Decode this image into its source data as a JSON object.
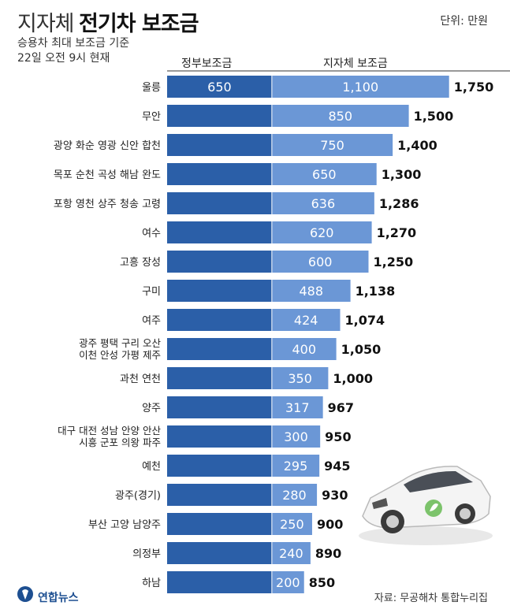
{
  "header": {
    "title_light": "지자체",
    "title_bold": "전기차 보조금",
    "unit": "단위: 만원",
    "subtitle_line1": "승용차 최대 보조금 기준",
    "subtitle_line2": "22일 오전 9시 현재"
  },
  "legend": {
    "government": "정부보조금",
    "local": "지자체 보조금"
  },
  "colors": {
    "government": "#2b5fa8",
    "local": "#6b97d6",
    "bar_text": "#ffffff",
    "total_text": "#111111"
  },
  "chart_data": {
    "type": "bar",
    "orientation": "horizontal",
    "stacked": true,
    "categories": [
      "울릉",
      "무안",
      "광양 화순 영광 신안 합천",
      "목포 순천 곡성 해남 완도",
      "포항 영천 상주 청송 고령",
      "여수",
      "고흥 장성",
      "구미",
      "여주",
      "광주 평택 구리 오산\n이천 안성 가평 제주",
      "과천 연천",
      "양주",
      "대구 대전 성남 안양 안산\n시흥 군포 의왕 파주",
      "예천",
      "광주(경기)",
      "부산 고양 남양주",
      "의정부",
      "하남"
    ],
    "series": [
      {
        "name": "정부보조금",
        "values": [
          650,
          650,
          650,
          650,
          650,
          650,
          650,
          650,
          650,
          650,
          650,
          650,
          650,
          650,
          650,
          650,
          650,
          650
        ]
      },
      {
        "name": "지자체 보조금",
        "values": [
          1100,
          850,
          750,
          650,
          636,
          620,
          600,
          488,
          424,
          400,
          350,
          317,
          300,
          295,
          280,
          250,
          240,
          200
        ]
      }
    ],
    "government_label": "650",
    "local_labels": [
      "1,100",
      "850",
      "750",
      "650",
      "636",
      "620",
      "600",
      "488",
      "424",
      "400",
      "350",
      "317",
      "300",
      "295",
      "280",
      "250",
      "240",
      "200"
    ],
    "totals": [
      "1,750",
      "1,500",
      "1,400",
      "1,300",
      "1,286",
      "1,270",
      "1,250",
      "1,138",
      "1,074",
      "1,050",
      "1,000",
      "967",
      "950",
      "945",
      "930",
      "900",
      "890",
      "850"
    ],
    "unit": "만원"
  },
  "footer": {
    "source": "자료: 무공해차 통합누리집",
    "logo_text": "연합뉴스"
  }
}
